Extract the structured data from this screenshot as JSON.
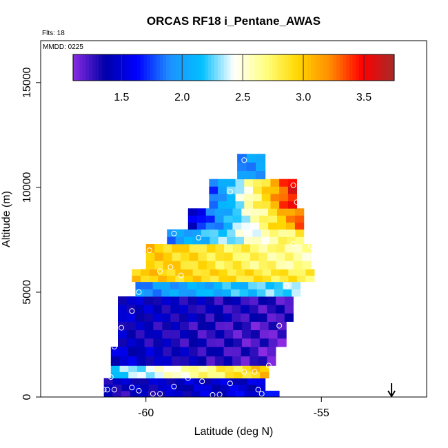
{
  "chart_data": {
    "type": "heatmap",
    "title": "ORCAS RF18 i_Pentane_AWAS",
    "flights_label": "Flts: 18",
    "date_label": "MMDD: 0225",
    "xlabel": "Latitude (deg N)",
    "ylabel": "Altitude (m)",
    "xlim": [
      -63,
      -52
    ],
    "ylim": [
      0,
      17000
    ],
    "xticks": [
      -60,
      -55
    ],
    "xtick_labels": [
      "-60",
      "-55"
    ],
    "yticks": [
      0,
      5000,
      10000,
      15000
    ],
    "ytick_labels": [
      "0",
      "5000",
      "10000",
      "15000"
    ],
    "colorbar": {
      "range": [
        1.1,
        3.75
      ],
      "ticks": [
        1.5,
        2.0,
        2.5,
        3.0,
        3.5
      ],
      "tick_labels": [
        "1.5",
        "2.0",
        "2.5",
        "3.0",
        "3.5"
      ],
      "colors": [
        "#8a2be2",
        "#0000a8",
        "#0000ff",
        "#1e90ff",
        "#00bfff",
        "#ffffff",
        "#ffff80",
        "#ffd700",
        "#ff8c00",
        "#ff0000",
        "#a52a2a"
      ]
    },
    "marker_arrow_latitude": -53.0,
    "cell_size": [
      0.25,
      400
    ],
    "bands": [
      {
        "lat": [
          -61.2,
          -56.2
        ],
        "alt": [
          0,
          300
        ],
        "v0": 1.3,
        "v1": 1.6
      },
      {
        "lat": [
          -61.2,
          -56.6
        ],
        "alt": [
          300,
          900
        ],
        "v0": 1.4,
        "v1": 1.5
      },
      {
        "lat": [
          -61.0,
          -56.5
        ],
        "alt": [
          900,
          1500
        ],
        "v0": 2.2,
        "v1": 3.0
      },
      {
        "lat": [
          -61.0,
          -56.3
        ],
        "alt": [
          1500,
          2400
        ],
        "v0": 1.5,
        "v1": 1.2
      },
      {
        "lat": [
          -60.8,
          -56.0
        ],
        "alt": [
          2400,
          3600
        ],
        "v0": 1.4,
        "v1": 1.2
      },
      {
        "lat": [
          -60.8,
          -55.8
        ],
        "alt": [
          3600,
          4800
        ],
        "v0": 1.45,
        "v1": 1.25
      },
      {
        "lat": [
          -60.3,
          -55.6
        ],
        "alt": [
          4800,
          5500
        ],
        "v0": 1.9,
        "v1": 2.3
      },
      {
        "lat": [
          -60.4,
          -55.2
        ],
        "alt": [
          5500,
          6100
        ],
        "v0": 3.0,
        "v1": 2.8
      },
      {
        "lat": [
          -60.0,
          -55.3
        ],
        "alt": [
          6100,
          7300
        ],
        "v0": 3.0,
        "v1": 2.6
      },
      {
        "lat": [
          -59.4,
          -55.5
        ],
        "alt": [
          7300,
          8000
        ],
        "v0": 1.9,
        "v1": 2.8
      },
      {
        "lat": [
          -58.8,
          -55.5
        ],
        "alt": [
          8000,
          9000
        ],
        "v0": 1.5,
        "v1": 3.3
      },
      {
        "lat": [
          -58.2,
          -55.7
        ],
        "alt": [
          9000,
          10400
        ],
        "v0": 1.8,
        "v1": 3.5
      },
      {
        "lat": [
          -57.4,
          -56.6
        ],
        "alt": [
          10400,
          11600
        ],
        "v0": 1.9,
        "v1": 2.0
      }
    ],
    "points": [
      {
        "lat": -61.2,
        "alt": 350
      },
      {
        "lat": -61.1,
        "alt": 350
      },
      {
        "lat": -60.9,
        "alt": 350
      },
      {
        "lat": -61.0,
        "alt": 950
      },
      {
        "lat": -60.4,
        "alt": 450
      },
      {
        "lat": -60.2,
        "alt": 300
      },
      {
        "lat": -59.8,
        "alt": 150
      },
      {
        "lat": -59.6,
        "alt": 150
      },
      {
        "lat": -59.2,
        "alt": 500
      },
      {
        "lat": -58.8,
        "alt": 900
      },
      {
        "lat": -58.4,
        "alt": 750
      },
      {
        "lat": -58.1,
        "alt": 100
      },
      {
        "lat": -57.9,
        "alt": 120
      },
      {
        "lat": -57.6,
        "alt": 650
      },
      {
        "lat": -57.2,
        "alt": 1200
      },
      {
        "lat": -56.9,
        "alt": 1200
      },
      {
        "lat": -56.8,
        "alt": 350
      },
      {
        "lat": -56.7,
        "alt": 150
      },
      {
        "lat": -60.9,
        "alt": 2400
      },
      {
        "lat": -60.7,
        "alt": 3300
      },
      {
        "lat": -60.4,
        "alt": 4100
      },
      {
        "lat": -60.2,
        "alt": 5000
      },
      {
        "lat": -59.9,
        "alt": 7000
      },
      {
        "lat": -59.6,
        "alt": 6000
      },
      {
        "lat": -59.3,
        "alt": 6200
      },
      {
        "lat": -59.0,
        "alt": 5800
      },
      {
        "lat": -59.2,
        "alt": 7800
      },
      {
        "lat": -58.5,
        "alt": 7600
      },
      {
        "lat": -57.6,
        "alt": 9800
      },
      {
        "lat": -57.2,
        "alt": 11300
      },
      {
        "lat": -56.2,
        "alt": 3400
      },
      {
        "lat": -56.0,
        "alt": 5300
      },
      {
        "lat": -55.8,
        "alt": 7300
      },
      {
        "lat": -55.8,
        "alt": 10100
      },
      {
        "lat": -55.5,
        "alt": 10100
      },
      {
        "lat": -55.7,
        "alt": 9300
      },
      {
        "lat": -55.3,
        "alt": 7200
      },
      {
        "lat": -56.5,
        "alt": 1500
      },
      {
        "lat": -59.9,
        "alt": 1300
      }
    ]
  }
}
